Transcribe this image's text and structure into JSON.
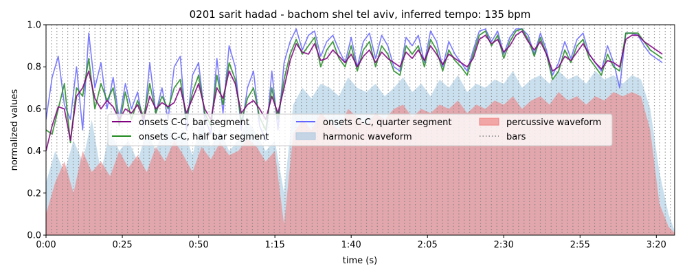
{
  "chart_data": {
    "type": "line",
    "title": "0201 sarit hadad - bachom shel tel aviv, inferred tempo: 135 bpm",
    "xlabel": "time (s)",
    "ylabel": "normalized values",
    "xlim": [
      0,
      206
    ],
    "ylim": [
      0,
      1.0
    ],
    "x_ticks": [
      0,
      25,
      50,
      75,
      100,
      125,
      150,
      175,
      200
    ],
    "x_tick_labels": [
      "0:00",
      "0:25",
      "0:50",
      "1:15",
      "1:40",
      "2:05",
      "2:30",
      "2:55",
      "3:20"
    ],
    "y_ticks": [
      0.0,
      0.2,
      0.4,
      0.6,
      0.8,
      1.0
    ],
    "y_tick_labels": [
      "0.0",
      "0.2",
      "0.4",
      "0.6",
      "0.8",
      "1.0"
    ],
    "legend_placement": "center",
    "bar_period_s": 1.78,
    "colors": {
      "bar_segment": "#800080",
      "half_bar_segment": "#228B22",
      "quarter_segment": "#6464ff",
      "harmonic_fill": "#b8d6e8",
      "percussive_fill": "#f08080",
      "bars_lines": "#808080"
    },
    "series": [
      {
        "name": "onsets C-C, bar segment",
        "x": [
          0,
          2,
          4,
          6,
          8,
          10,
          12,
          14,
          16,
          18,
          20,
          22,
          24,
          26,
          28,
          30,
          32,
          34,
          36,
          38,
          40,
          42,
          44,
          46,
          48,
          50,
          52,
          54,
          56,
          58,
          60,
          62,
          64,
          66,
          68,
          70,
          72,
          74,
          76,
          78,
          80,
          82,
          84,
          86,
          88,
          90,
          92,
          94,
          96,
          98,
          100,
          102,
          104,
          106,
          108,
          110,
          112,
          114,
          116,
          118,
          120,
          122,
          124,
          126,
          128,
          130,
          132,
          134,
          136,
          138,
          140,
          142,
          144,
          146,
          148,
          150,
          152,
          154,
          156,
          158,
          160,
          162,
          164,
          166,
          168,
          170,
          172,
          174,
          176,
          178,
          180,
          182,
          184,
          186,
          188,
          190,
          192,
          194,
          196,
          198,
          200,
          202
        ],
        "values": [
          0.4,
          0.52,
          0.61,
          0.6,
          0.45,
          0.66,
          0.7,
          0.78,
          0.65,
          0.6,
          0.64,
          0.61,
          0.55,
          0.6,
          0.58,
          0.62,
          0.55,
          0.66,
          0.6,
          0.63,
          0.61,
          0.63,
          0.7,
          0.58,
          0.65,
          0.72,
          0.6,
          0.55,
          0.7,
          0.65,
          0.78,
          0.72,
          0.58,
          0.62,
          0.64,
          0.6,
          0.55,
          0.66,
          0.58,
          0.7,
          0.83,
          0.91,
          0.87,
          0.86,
          0.91,
          0.83,
          0.84,
          0.88,
          0.85,
          0.82,
          0.86,
          0.8,
          0.85,
          0.88,
          0.82,
          0.87,
          0.84,
          0.82,
          0.8,
          0.87,
          0.84,
          0.88,
          0.83,
          0.9,
          0.86,
          0.81,
          0.86,
          0.84,
          0.82,
          0.8,
          0.84,
          0.93,
          0.95,
          0.91,
          0.93,
          0.87,
          0.9,
          0.95,
          0.97,
          0.92,
          0.88,
          0.92,
          0.86,
          0.78,
          0.8,
          0.85,
          0.83,
          0.87,
          0.91,
          0.86,
          0.82,
          0.79,
          0.83,
          0.82,
          0.8,
          0.93,
          0.95,
          0.95,
          0.92,
          0.9,
          0.88,
          0.86
        ]
      },
      {
        "name": "onsets C-C, half bar segment",
        "x": [
          0,
          2,
          4,
          6,
          8,
          10,
          12,
          14,
          16,
          18,
          20,
          22,
          24,
          26,
          28,
          30,
          32,
          34,
          36,
          38,
          40,
          42,
          44,
          46,
          48,
          50,
          52,
          54,
          56,
          58,
          60,
          62,
          64,
          66,
          68,
          70,
          72,
          74,
          76,
          78,
          80,
          82,
          84,
          86,
          88,
          90,
          92,
          94,
          96,
          98,
          100,
          102,
          104,
          106,
          108,
          110,
          112,
          114,
          116,
          118,
          120,
          122,
          124,
          126,
          128,
          130,
          132,
          134,
          136,
          138,
          140,
          142,
          144,
          146,
          148,
          150,
          152,
          154,
          156,
          158,
          160,
          162,
          164,
          166,
          168,
          170,
          172,
          174,
          176,
          178,
          180,
          182,
          184,
          186,
          188,
          190,
          192,
          194,
          196,
          198,
          200,
          202
        ],
        "values": [
          0.5,
          0.48,
          0.6,
          0.72,
          0.44,
          0.7,
          0.66,
          0.84,
          0.6,
          0.72,
          0.64,
          0.7,
          0.52,
          0.68,
          0.55,
          0.64,
          0.56,
          0.72,
          0.58,
          0.66,
          0.6,
          0.7,
          0.74,
          0.55,
          0.68,
          0.76,
          0.58,
          0.52,
          0.76,
          0.62,
          0.82,
          0.74,
          0.54,
          0.65,
          0.7,
          0.56,
          0.5,
          0.7,
          0.55,
          0.74,
          0.86,
          0.93,
          0.86,
          0.9,
          0.94,
          0.8,
          0.88,
          0.92,
          0.84,
          0.8,
          0.9,
          0.78,
          0.88,
          0.92,
          0.8,
          0.9,
          0.86,
          0.78,
          0.76,
          0.9,
          0.86,
          0.9,
          0.8,
          0.93,
          0.88,
          0.78,
          0.88,
          0.83,
          0.8,
          0.76,
          0.86,
          0.95,
          0.97,
          0.9,
          0.95,
          0.84,
          0.92,
          0.97,
          0.98,
          0.93,
          0.85,
          0.94,
          0.86,
          0.74,
          0.78,
          0.88,
          0.82,
          0.9,
          0.93,
          0.84,
          0.8,
          0.76,
          0.86,
          0.8,
          0.78,
          0.96,
          0.96,
          0.96,
          0.92,
          0.88,
          0.86,
          0.84
        ]
      },
      {
        "name": "onsets C-C, quarter segment",
        "x": [
          0,
          2,
          4,
          6,
          8,
          10,
          12,
          14,
          16,
          18,
          20,
          22,
          24,
          26,
          28,
          30,
          32,
          34,
          36,
          38,
          40,
          42,
          44,
          46,
          48,
          50,
          52,
          54,
          56,
          58,
          60,
          62,
          64,
          66,
          68,
          70,
          72,
          74,
          76,
          78,
          80,
          82,
          84,
          86,
          88,
          90,
          92,
          94,
          96,
          98,
          100,
          102,
          104,
          106,
          108,
          110,
          112,
          114,
          116,
          118,
          120,
          122,
          124,
          126,
          128,
          130,
          132,
          134,
          136,
          138,
          140,
          142,
          144,
          146,
          148,
          150,
          152,
          154,
          156,
          158,
          160,
          162,
          164,
          166,
          168,
          170,
          172,
          174,
          176,
          178,
          180,
          182,
          184,
          186,
          188,
          190,
          192,
          194,
          196,
          198,
          200,
          202
        ],
        "values": [
          0.55,
          0.75,
          0.85,
          0.62,
          0.55,
          0.8,
          0.5,
          0.96,
          0.7,
          0.82,
          0.6,
          0.75,
          0.55,
          0.72,
          0.6,
          0.68,
          0.52,
          0.82,
          0.58,
          0.7,
          0.55,
          0.8,
          0.85,
          0.5,
          0.76,
          0.82,
          0.56,
          0.48,
          0.84,
          0.58,
          0.9,
          0.8,
          0.5,
          0.7,
          0.78,
          0.52,
          0.45,
          0.78,
          0.5,
          0.82,
          0.92,
          0.98,
          0.88,
          0.95,
          0.97,
          0.85,
          0.92,
          0.95,
          0.88,
          0.82,
          0.94,
          0.8,
          0.92,
          0.96,
          0.84,
          0.95,
          0.9,
          0.8,
          0.78,
          0.94,
          0.9,
          0.95,
          0.82,
          0.97,
          0.92,
          0.8,
          0.92,
          0.86,
          0.82,
          0.78,
          0.88,
          0.97,
          0.98,
          0.92,
          0.97,
          0.86,
          0.94,
          0.98,
          0.98,
          0.95,
          0.86,
          0.96,
          0.88,
          0.76,
          0.82,
          0.92,
          0.84,
          0.93,
          0.96,
          0.86,
          0.82,
          0.78,
          0.9,
          0.82,
          0.7,
          0.96,
          0.96,
          0.95,
          0.9,
          0.86,
          0.84,
          0.82
        ]
      },
      {
        "name": "harmonic waveform",
        "x": [
          0,
          3,
          6,
          9,
          12,
          15,
          18,
          21,
          24,
          27,
          30,
          33,
          36,
          39,
          42,
          45,
          48,
          51,
          54,
          57,
          60,
          63,
          66,
          69,
          72,
          75,
          78,
          81,
          84,
          87,
          90,
          93,
          96,
          99,
          102,
          105,
          108,
          111,
          114,
          117,
          120,
          123,
          126,
          129,
          132,
          135,
          138,
          141,
          144,
          147,
          150,
          153,
          156,
          159,
          162,
          165,
          168,
          171,
          174,
          177,
          180,
          183,
          186,
          189,
          192,
          195,
          198,
          201,
          204,
          206
        ],
        "values": [
          0.25,
          0.4,
          0.3,
          0.45,
          0.35,
          0.55,
          0.3,
          0.5,
          0.4,
          0.45,
          0.35,
          0.5,
          0.4,
          0.55,
          0.45,
          0.5,
          0.38,
          0.55,
          0.42,
          0.5,
          0.4,
          0.45,
          0.55,
          0.48,
          0.4,
          0.45,
          0.2,
          0.62,
          0.7,
          0.65,
          0.72,
          0.7,
          0.66,
          0.75,
          0.7,
          0.68,
          0.72,
          0.66,
          0.7,
          0.75,
          0.68,
          0.72,
          0.66,
          0.74,
          0.7,
          0.76,
          0.68,
          0.72,
          0.7,
          0.74,
          0.72,
          0.78,
          0.7,
          0.74,
          0.76,
          0.72,
          0.78,
          0.74,
          0.76,
          0.72,
          0.78,
          0.74,
          0.76,
          0.72,
          0.76,
          0.74,
          0.6,
          0.3,
          0.1,
          0.02
        ]
      },
      {
        "name": "percussive waveform",
        "x": [
          0,
          3,
          6,
          9,
          12,
          15,
          18,
          21,
          24,
          27,
          30,
          33,
          36,
          39,
          42,
          45,
          48,
          51,
          54,
          57,
          60,
          63,
          66,
          69,
          72,
          75,
          78,
          81,
          84,
          87,
          90,
          93,
          96,
          99,
          102,
          105,
          108,
          111,
          114,
          117,
          120,
          123,
          126,
          129,
          132,
          135,
          138,
          141,
          144,
          147,
          150,
          153,
          156,
          159,
          162,
          165,
          168,
          171,
          174,
          177,
          180,
          183,
          186,
          189,
          192,
          195,
          198,
          201,
          204,
          206
        ],
        "values": [
          0.1,
          0.25,
          0.35,
          0.2,
          0.4,
          0.3,
          0.35,
          0.28,
          0.4,
          0.32,
          0.38,
          0.3,
          0.42,
          0.35,
          0.45,
          0.38,
          0.3,
          0.42,
          0.36,
          0.44,
          0.38,
          0.4,
          0.46,
          0.42,
          0.35,
          0.4,
          0.05,
          0.48,
          0.55,
          0.5,
          0.58,
          0.54,
          0.5,
          0.6,
          0.56,
          0.52,
          0.58,
          0.55,
          0.6,
          0.62,
          0.56,
          0.6,
          0.58,
          0.62,
          0.6,
          0.64,
          0.58,
          0.62,
          0.6,
          0.64,
          0.62,
          0.66,
          0.6,
          0.64,
          0.66,
          0.62,
          0.68,
          0.64,
          0.66,
          0.62,
          0.66,
          0.64,
          0.68,
          0.66,
          0.68,
          0.66,
          0.5,
          0.15,
          0.04,
          0.01
        ]
      },
      {
        "name": "bars"
      }
    ]
  }
}
